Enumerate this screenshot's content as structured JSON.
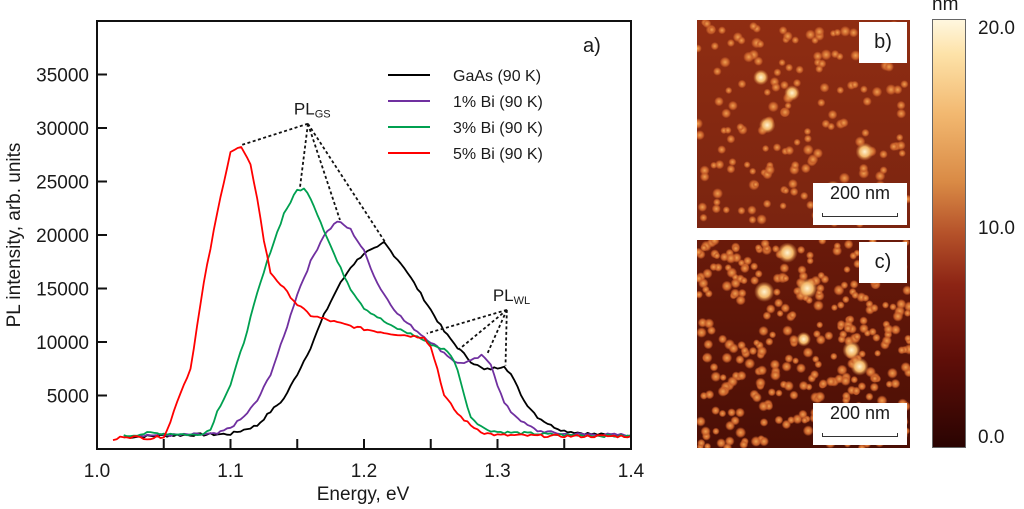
{
  "chart_data": {
    "type": "line",
    "panel_label": "a)",
    "title": "",
    "xlabel": "Energy, eV",
    "ylabel": "PL intensity, arb. units",
    "xlim": [
      1.0,
      1.4
    ],
    "ylim": [
      0,
      40000
    ],
    "x_ticks": [
      1.0,
      1.1,
      1.2,
      1.3,
      1.4
    ],
    "x_tick_labels": [
      "1.0",
      "1.1",
      "1.2",
      "1.3",
      "1.4"
    ],
    "x_minor_ticks": [
      1.05,
      1.15,
      1.25,
      1.35
    ],
    "y_ticks": [
      5000,
      10000,
      15000,
      20000,
      25000,
      30000,
      35000
    ],
    "y_tick_labels": [
      "5000",
      "10000",
      "15000",
      "20000",
      "25000",
      "30000",
      "35000"
    ],
    "grid": false,
    "legend_position": "top-right",
    "series": [
      {
        "name": "GaAs (90 K)",
        "color": "#000000",
        "x": [
          1.02,
          1.06,
          1.1,
          1.11,
          1.12,
          1.13,
          1.14,
          1.15,
          1.16,
          1.17,
          1.18,
          1.19,
          1.2,
          1.21,
          1.215,
          1.22,
          1.23,
          1.24,
          1.25,
          1.26,
          1.27,
          1.28,
          1.29,
          1.3,
          1.305,
          1.31,
          1.32,
          1.33,
          1.34,
          1.35,
          1.37,
          1.4
        ],
        "y": [
          1100,
          1300,
          1400,
          1800,
          2200,
          3500,
          4700,
          7000,
          9500,
          12500,
          15000,
          17000,
          18300,
          18800,
          19300,
          18500,
          17000,
          15000,
          13000,
          11000,
          9500,
          8200,
          7400,
          7600,
          7800,
          7000,
          4500,
          3000,
          2200,
          1700,
          1400,
          1200
        ]
      },
      {
        "name": "1% Bi (90 K)",
        "color": "#7030a0",
        "x": [
          1.03,
          1.06,
          1.09,
          1.1,
          1.11,
          1.12,
          1.13,
          1.14,
          1.15,
          1.16,
          1.17,
          1.18,
          1.19,
          1.2,
          1.21,
          1.22,
          1.23,
          1.24,
          1.25,
          1.26,
          1.27,
          1.28,
          1.288,
          1.295,
          1.3,
          1.305,
          1.31,
          1.32,
          1.33,
          1.35,
          1.4
        ],
        "y": [
          1300,
          1300,
          1400,
          2000,
          3000,
          4500,
          7000,
          10500,
          14500,
          17500,
          20000,
          21300,
          20500,
          18500,
          15500,
          13500,
          12000,
          11000,
          10000,
          9000,
          8000,
          8200,
          8700,
          8000,
          6000,
          4300,
          3500,
          2400,
          1700,
          1400,
          1300
        ]
      },
      {
        "name": "3% Bi (90 K)",
        "color": "#00a050",
        "x": [
          1.02,
          1.04,
          1.06,
          1.075,
          1.085,
          1.09,
          1.1,
          1.11,
          1.12,
          1.13,
          1.14,
          1.15,
          1.155,
          1.16,
          1.17,
          1.18,
          1.19,
          1.2,
          1.22,
          1.24,
          1.25,
          1.26,
          1.265,
          1.27,
          1.275,
          1.28,
          1.29,
          1.3,
          1.35,
          1.4
        ],
        "y": [
          1200,
          1500,
          1400,
          1300,
          1800,
          3500,
          6000,
          10000,
          14500,
          18500,
          22000,
          24200,
          24300,
          23500,
          20500,
          17500,
          15000,
          13200,
          11500,
          10500,
          9800,
          9300,
          8800,
          7500,
          5000,
          3000,
          1900,
          1600,
          1300,
          1200
        ]
      },
      {
        "name": "5% Bi (90 K)",
        "color": "#ff0000",
        "x": [
          1.012,
          1.02,
          1.03,
          1.04,
          1.05,
          1.055,
          1.06,
          1.07,
          1.075,
          1.08,
          1.09,
          1.095,
          1.1,
          1.108,
          1.115,
          1.12,
          1.125,
          1.13,
          1.14,
          1.15,
          1.16,
          1.18,
          1.2,
          1.22,
          1.24,
          1.245,
          1.25,
          1.255,
          1.26,
          1.27,
          1.28,
          1.29,
          1.3,
          1.35,
          1.4
        ],
        "y": [
          800,
          1200,
          1100,
          1000,
          1200,
          2500,
          4500,
          7500,
          11500,
          15500,
          22000,
          25000,
          27800,
          28200,
          26500,
          23500,
          19500,
          16500,
          15000,
          13500,
          12500,
          11800,
          11200,
          10800,
          10500,
          10500,
          9500,
          7500,
          5000,
          3300,
          2200,
          1500,
          1300,
          1200,
          1200
        ]
      }
    ],
    "annotations": [
      {
        "label": "PL",
        "subscript": "GS",
        "anchor": [
          1.158,
          30400
        ],
        "targets": [
          [
            1.108,
            28400
          ],
          [
            1.152,
            24400
          ],
          [
            1.182,
            21400
          ],
          [
            1.216,
            19300
          ]
        ]
      },
      {
        "label": "PL",
        "subscript": "WL",
        "anchor": [
          1.307,
          13000
        ],
        "targets": [
          [
            1.247,
            10800
          ],
          [
            1.271,
            9300
          ],
          [
            1.292,
            8800
          ],
          [
            1.306,
            7800
          ]
        ]
      }
    ]
  },
  "afm_images": [
    {
      "panel_label": "b)",
      "scale_bar": "200 nm",
      "sample": "coarser dots"
    },
    {
      "panel_label": "c)",
      "scale_bar": "200 nm",
      "sample": "denser dots"
    }
  ],
  "colorbar": {
    "unit": "nm",
    "ticks": [
      "20.0",
      "10.0",
      "0.0"
    ],
    "range": [
      0.0,
      20.0
    ]
  }
}
